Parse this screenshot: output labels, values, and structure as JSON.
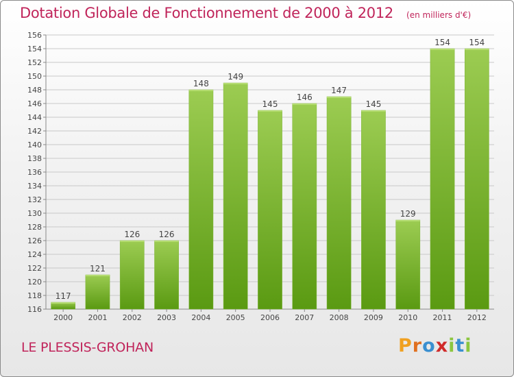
{
  "header": {
    "title": "Dotation Globale de Fonctionnement de 2000 à 2012",
    "unit": "(en milliers d'€)"
  },
  "footer": {
    "commune": "LE PLESSIS-GROHAN",
    "logo_letters": [
      {
        "ch": "P",
        "color": "#f0a020"
      },
      {
        "ch": "r",
        "color": "#e07020"
      },
      {
        "ch": "o",
        "color": "#3a8fd0"
      },
      {
        "ch": "x",
        "color": "#d02a2a"
      },
      {
        "ch": "i",
        "color": "#8cc63f"
      },
      {
        "ch": "t",
        "color": "#3a8fd0"
      },
      {
        "ch": "i",
        "color": "#8cc63f"
      }
    ]
  },
  "colors": {
    "bar_top": "#9ccc52",
    "bar_bottom": "#5a9a12",
    "grid": "#c8c8c8",
    "axis": "#888888"
  },
  "chart_data": {
    "type": "bar",
    "title": "Dotation Globale de Fonctionnement de 2000 à 2012",
    "xlabel": "",
    "ylabel": "",
    "categories": [
      "2000",
      "2001",
      "2002",
      "2003",
      "2004",
      "2005",
      "2006",
      "2007",
      "2008",
      "2009",
      "2010",
      "2011",
      "2012"
    ],
    "values": [
      117,
      121,
      126,
      126,
      148,
      149,
      145,
      146,
      147,
      145,
      129,
      154,
      154
    ],
    "ylim": [
      116,
      156
    ],
    "yticks": [
      116,
      118,
      120,
      122,
      124,
      126,
      128,
      130,
      132,
      134,
      136,
      138,
      140,
      142,
      144,
      146,
      148,
      150,
      152,
      154,
      156
    ],
    "grid": true
  }
}
